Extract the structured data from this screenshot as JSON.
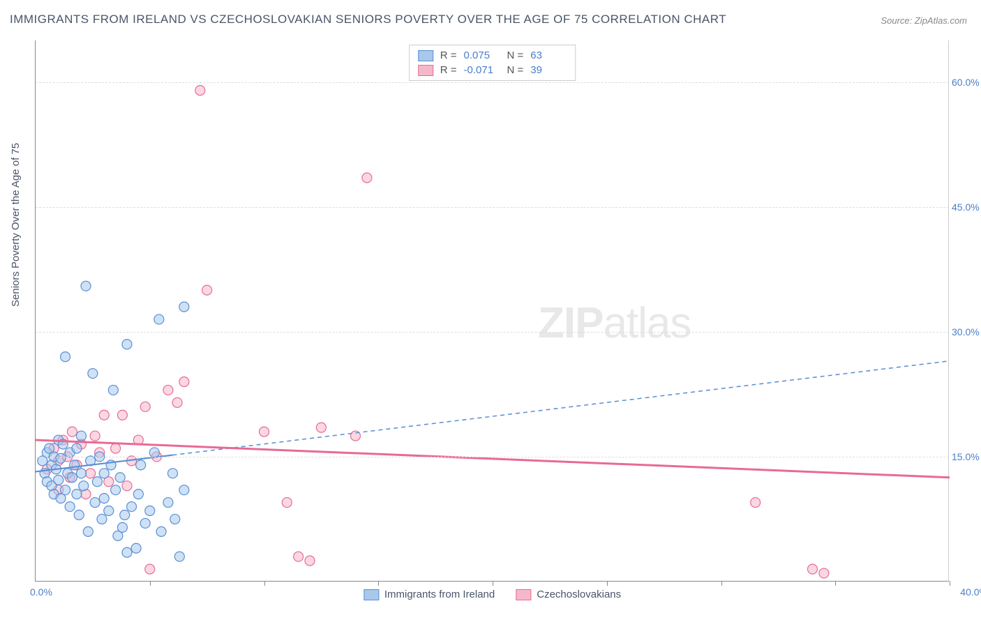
{
  "title": "IMMIGRANTS FROM IRELAND VS CZECHOSLOVAKIAN SENIORS POVERTY OVER THE AGE OF 75 CORRELATION CHART",
  "source": "Source: ZipAtlas.com",
  "ylabel": "Seniors Poverty Over the Age of 75",
  "watermark_bold": "ZIP",
  "watermark_light": "atlas",
  "chart": {
    "type": "scatter-correlation",
    "background_color": "#ffffff",
    "grid_color": "#dddddd",
    "axis_color": "#888888",
    "tick_label_color": "#4a7ec9",
    "xlim": [
      0,
      40
    ],
    "ylim": [
      0,
      65
    ],
    "y_gridlines": [
      15,
      30,
      45,
      60
    ],
    "y_tick_labels": [
      "15.0%",
      "30.0%",
      "45.0%",
      "60.0%"
    ],
    "x_ticks": [
      5,
      10,
      15,
      20,
      25,
      30,
      35,
      40
    ],
    "x_start_label": "0.0%",
    "x_end_label": "40.0%",
    "marker_radius": 7,
    "marker_opacity": 0.55,
    "series": [
      {
        "name": "Immigrants from Ireland",
        "color_fill": "#a8c8ec",
        "color_stroke": "#5a8fd4",
        "r_label": "R =",
        "r_value": "0.075",
        "n_label": "N =",
        "n_value": "63",
        "trend": {
          "y_at_x0": 13.2,
          "y_at_x40": 26.5,
          "solid_until_x": 6,
          "dash": "6,5",
          "stroke_width": 2.2
        },
        "points": [
          [
            0.3,
            14.5
          ],
          [
            0.4,
            13.0
          ],
          [
            0.5,
            15.5
          ],
          [
            0.5,
            12.0
          ],
          [
            0.6,
            16.0
          ],
          [
            0.7,
            11.5
          ],
          [
            0.7,
            14.0
          ],
          [
            0.8,
            15.0
          ],
          [
            0.8,
            10.5
          ],
          [
            0.9,
            13.5
          ],
          [
            1.0,
            12.2
          ],
          [
            1.0,
            17.0
          ],
          [
            1.1,
            10.0
          ],
          [
            1.1,
            14.8
          ],
          [
            1.2,
            16.5
          ],
          [
            1.3,
            11.0
          ],
          [
            1.3,
            27.0
          ],
          [
            1.4,
            13.0
          ],
          [
            1.5,
            9.0
          ],
          [
            1.5,
            15.5
          ],
          [
            1.6,
            12.5
          ],
          [
            1.7,
            14.0
          ],
          [
            1.8,
            10.5
          ],
          [
            1.8,
            16.0
          ],
          [
            1.9,
            8.0
          ],
          [
            2.0,
            13.0
          ],
          [
            2.0,
            17.5
          ],
          [
            2.1,
            11.5
          ],
          [
            2.2,
            35.5
          ],
          [
            2.3,
            6.0
          ],
          [
            2.4,
            14.5
          ],
          [
            2.5,
            25.0
          ],
          [
            2.6,
            9.5
          ],
          [
            2.7,
            12.0
          ],
          [
            2.8,
            15.0
          ],
          [
            2.9,
            7.5
          ],
          [
            3.0,
            13.0
          ],
          [
            3.0,
            10.0
          ],
          [
            3.2,
            8.5
          ],
          [
            3.3,
            14.0
          ],
          [
            3.4,
            23.0
          ],
          [
            3.5,
            11.0
          ],
          [
            3.6,
            5.5
          ],
          [
            3.7,
            12.5
          ],
          [
            3.8,
            6.5
          ],
          [
            3.9,
            8.0
          ],
          [
            4.0,
            28.5
          ],
          [
            4.0,
            3.5
          ],
          [
            4.2,
            9.0
          ],
          [
            4.4,
            4.0
          ],
          [
            4.5,
            10.5
          ],
          [
            4.6,
            14.0
          ],
          [
            4.8,
            7.0
          ],
          [
            5.0,
            8.5
          ],
          [
            5.2,
            15.5
          ],
          [
            5.4,
            31.5
          ],
          [
            5.5,
            6.0
          ],
          [
            5.8,
            9.5
          ],
          [
            6.0,
            13.0
          ],
          [
            6.1,
            7.5
          ],
          [
            6.3,
            3.0
          ],
          [
            6.5,
            11.0
          ],
          [
            6.5,
            33.0
          ]
        ]
      },
      {
        "name": "Czechoslovakians",
        "color_fill": "#f5b8ca",
        "color_stroke": "#e86a94",
        "r_label": "R =",
        "r_value": "-0.071",
        "n_label": "N =",
        "n_value": "39",
        "trend": {
          "y_at_x0": 17.0,
          "y_at_x40": 12.5,
          "solid_until_x": 40,
          "dash": "",
          "stroke_width": 3
        },
        "points": [
          [
            0.5,
            13.5
          ],
          [
            0.8,
            16.0
          ],
          [
            1.0,
            14.5
          ],
          [
            1.0,
            11.0
          ],
          [
            1.2,
            17.0
          ],
          [
            1.4,
            15.0
          ],
          [
            1.5,
            12.5
          ],
          [
            1.6,
            18.0
          ],
          [
            1.8,
            14.0
          ],
          [
            2.0,
            16.5
          ],
          [
            2.2,
            10.5
          ],
          [
            2.4,
            13.0
          ],
          [
            2.6,
            17.5
          ],
          [
            2.8,
            15.5
          ],
          [
            3.0,
            20.0
          ],
          [
            3.2,
            12.0
          ],
          [
            3.5,
            16.0
          ],
          [
            3.8,
            20.0
          ],
          [
            4.0,
            11.5
          ],
          [
            4.2,
            14.5
          ],
          [
            4.5,
            17.0
          ],
          [
            4.8,
            21.0
          ],
          [
            5.0,
            1.5
          ],
          [
            5.3,
            15.0
          ],
          [
            5.8,
            23.0
          ],
          [
            6.2,
            21.5
          ],
          [
            6.5,
            24.0
          ],
          [
            7.2,
            59.0
          ],
          [
            7.5,
            35.0
          ],
          [
            10.0,
            18.0
          ],
          [
            11.0,
            9.5
          ],
          [
            11.5,
            3.0
          ],
          [
            12.0,
            2.5
          ],
          [
            12.5,
            18.5
          ],
          [
            14.0,
            17.5
          ],
          [
            14.5,
            48.5
          ],
          [
            31.5,
            9.5
          ],
          [
            34.0,
            1.5
          ],
          [
            34.5,
            1.0
          ]
        ]
      }
    ]
  },
  "legend_bottom": [
    {
      "label": "Immigrants from Ireland",
      "fill": "#a8c8ec",
      "stroke": "#5a8fd4"
    },
    {
      "label": "Czechoslovakians",
      "fill": "#f5b8ca",
      "stroke": "#e86a94"
    }
  ]
}
